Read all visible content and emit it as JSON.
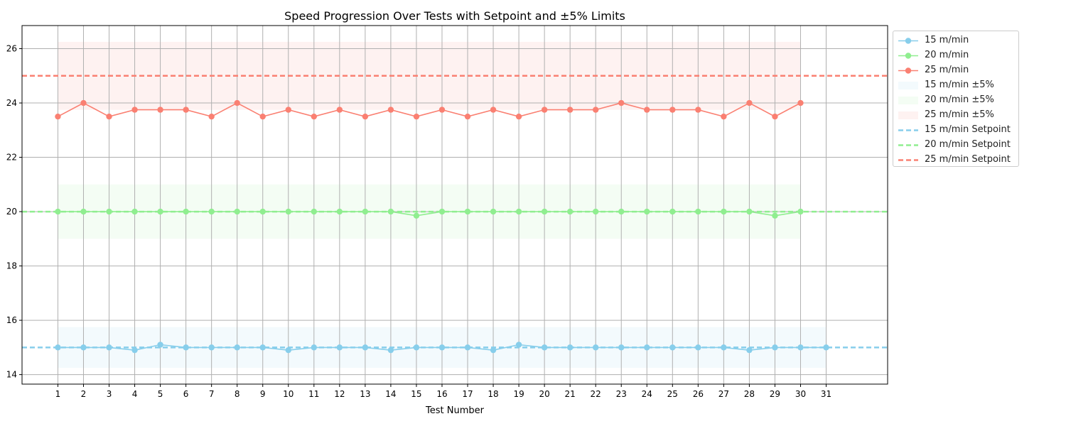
{
  "chart_data": {
    "type": "line",
    "title": "Speed Progression Over Tests with Setpoint and ±5% Limits",
    "xlabel": "Test Number",
    "ylabel": "",
    "xlim": [
      -0.4,
      33.4
    ],
    "ylim": [
      13.65,
      26.85
    ],
    "x_ticks": [
      1,
      2,
      3,
      4,
      5,
      6,
      7,
      8,
      9,
      10,
      11,
      12,
      13,
      14,
      15,
      16,
      17,
      18,
      19,
      20,
      21,
      22,
      23,
      24,
      25,
      26,
      27,
      28,
      29,
      30,
      31
    ],
    "y_ticks": [
      14,
      16,
      18,
      20,
      22,
      24,
      26
    ],
    "grid": true,
    "legend_position": "outside-right",
    "series": [
      {
        "name": "15 m/min",
        "color": "#87CEEB",
        "x": [
          1,
          2,
          3,
          4,
          5,
          6,
          7,
          8,
          9,
          10,
          11,
          12,
          13,
          14,
          15,
          16,
          17,
          18,
          19,
          20,
          21,
          22,
          23,
          24,
          25,
          26,
          27,
          28,
          29,
          30,
          31
        ],
        "values": [
          15,
          15,
          15,
          14.9,
          15.1,
          15,
          15,
          15,
          15,
          14.9,
          15,
          15,
          15,
          14.9,
          15,
          15,
          15,
          14.9,
          15.1,
          15,
          15,
          15,
          15,
          15,
          15,
          15,
          15,
          14.9,
          15,
          15,
          15
        ]
      },
      {
        "name": "20 m/min",
        "color": "#90EE90",
        "x": [
          1,
          2,
          3,
          4,
          5,
          6,
          7,
          8,
          9,
          10,
          11,
          12,
          13,
          14,
          15,
          16,
          17,
          18,
          19,
          20,
          21,
          22,
          23,
          24,
          25,
          26,
          27,
          28,
          29,
          30
        ],
        "values": [
          20,
          20,
          20,
          20,
          20,
          20,
          20,
          20,
          20,
          20,
          20,
          20,
          20,
          20,
          19.85,
          20,
          20,
          20,
          20,
          20,
          20,
          20,
          20,
          20,
          20,
          20,
          20,
          20,
          19.85,
          20
        ]
      },
      {
        "name": "25 m/min",
        "color": "#FA8072",
        "x": [
          1,
          2,
          3,
          4,
          5,
          6,
          7,
          8,
          9,
          10,
          11,
          12,
          13,
          14,
          15,
          16,
          17,
          18,
          19,
          20,
          21,
          22,
          23,
          24,
          25,
          26,
          27,
          28,
          29,
          30
        ],
        "values": [
          23.5,
          24,
          23.5,
          23.75,
          23.75,
          23.75,
          23.5,
          24,
          23.5,
          23.75,
          23.5,
          23.75,
          23.5,
          23.75,
          23.5,
          23.75,
          23.5,
          23.75,
          23.5,
          23.75,
          23.75,
          23.75,
          24,
          23.75,
          23.75,
          23.75,
          23.5,
          24,
          23.5,
          24
        ]
      }
    ],
    "bands": [
      {
        "name": "15 m/min ±5%",
        "color": "#87CEEB",
        "x_range": [
          1,
          31
        ],
        "y_range": [
          14.25,
          15.75
        ]
      },
      {
        "name": "20 m/min ±5%",
        "color": "#90EE90",
        "x_range": [
          1,
          30
        ],
        "y_range": [
          19,
          21
        ]
      },
      {
        "name": "25 m/min ±5%",
        "color": "#FA8072",
        "x_range": [
          1,
          30
        ],
        "y_range": [
          23.75,
          26.25
        ]
      }
    ],
    "setpoints": [
      {
        "name": "15 m/min Setpoint",
        "color": "#87CEEB",
        "value": 15
      },
      {
        "name": "20 m/min Setpoint",
        "color": "#90EE90",
        "value": 20
      },
      {
        "name": "25 m/min Setpoint",
        "color": "#FA8072",
        "value": 25
      }
    ]
  }
}
